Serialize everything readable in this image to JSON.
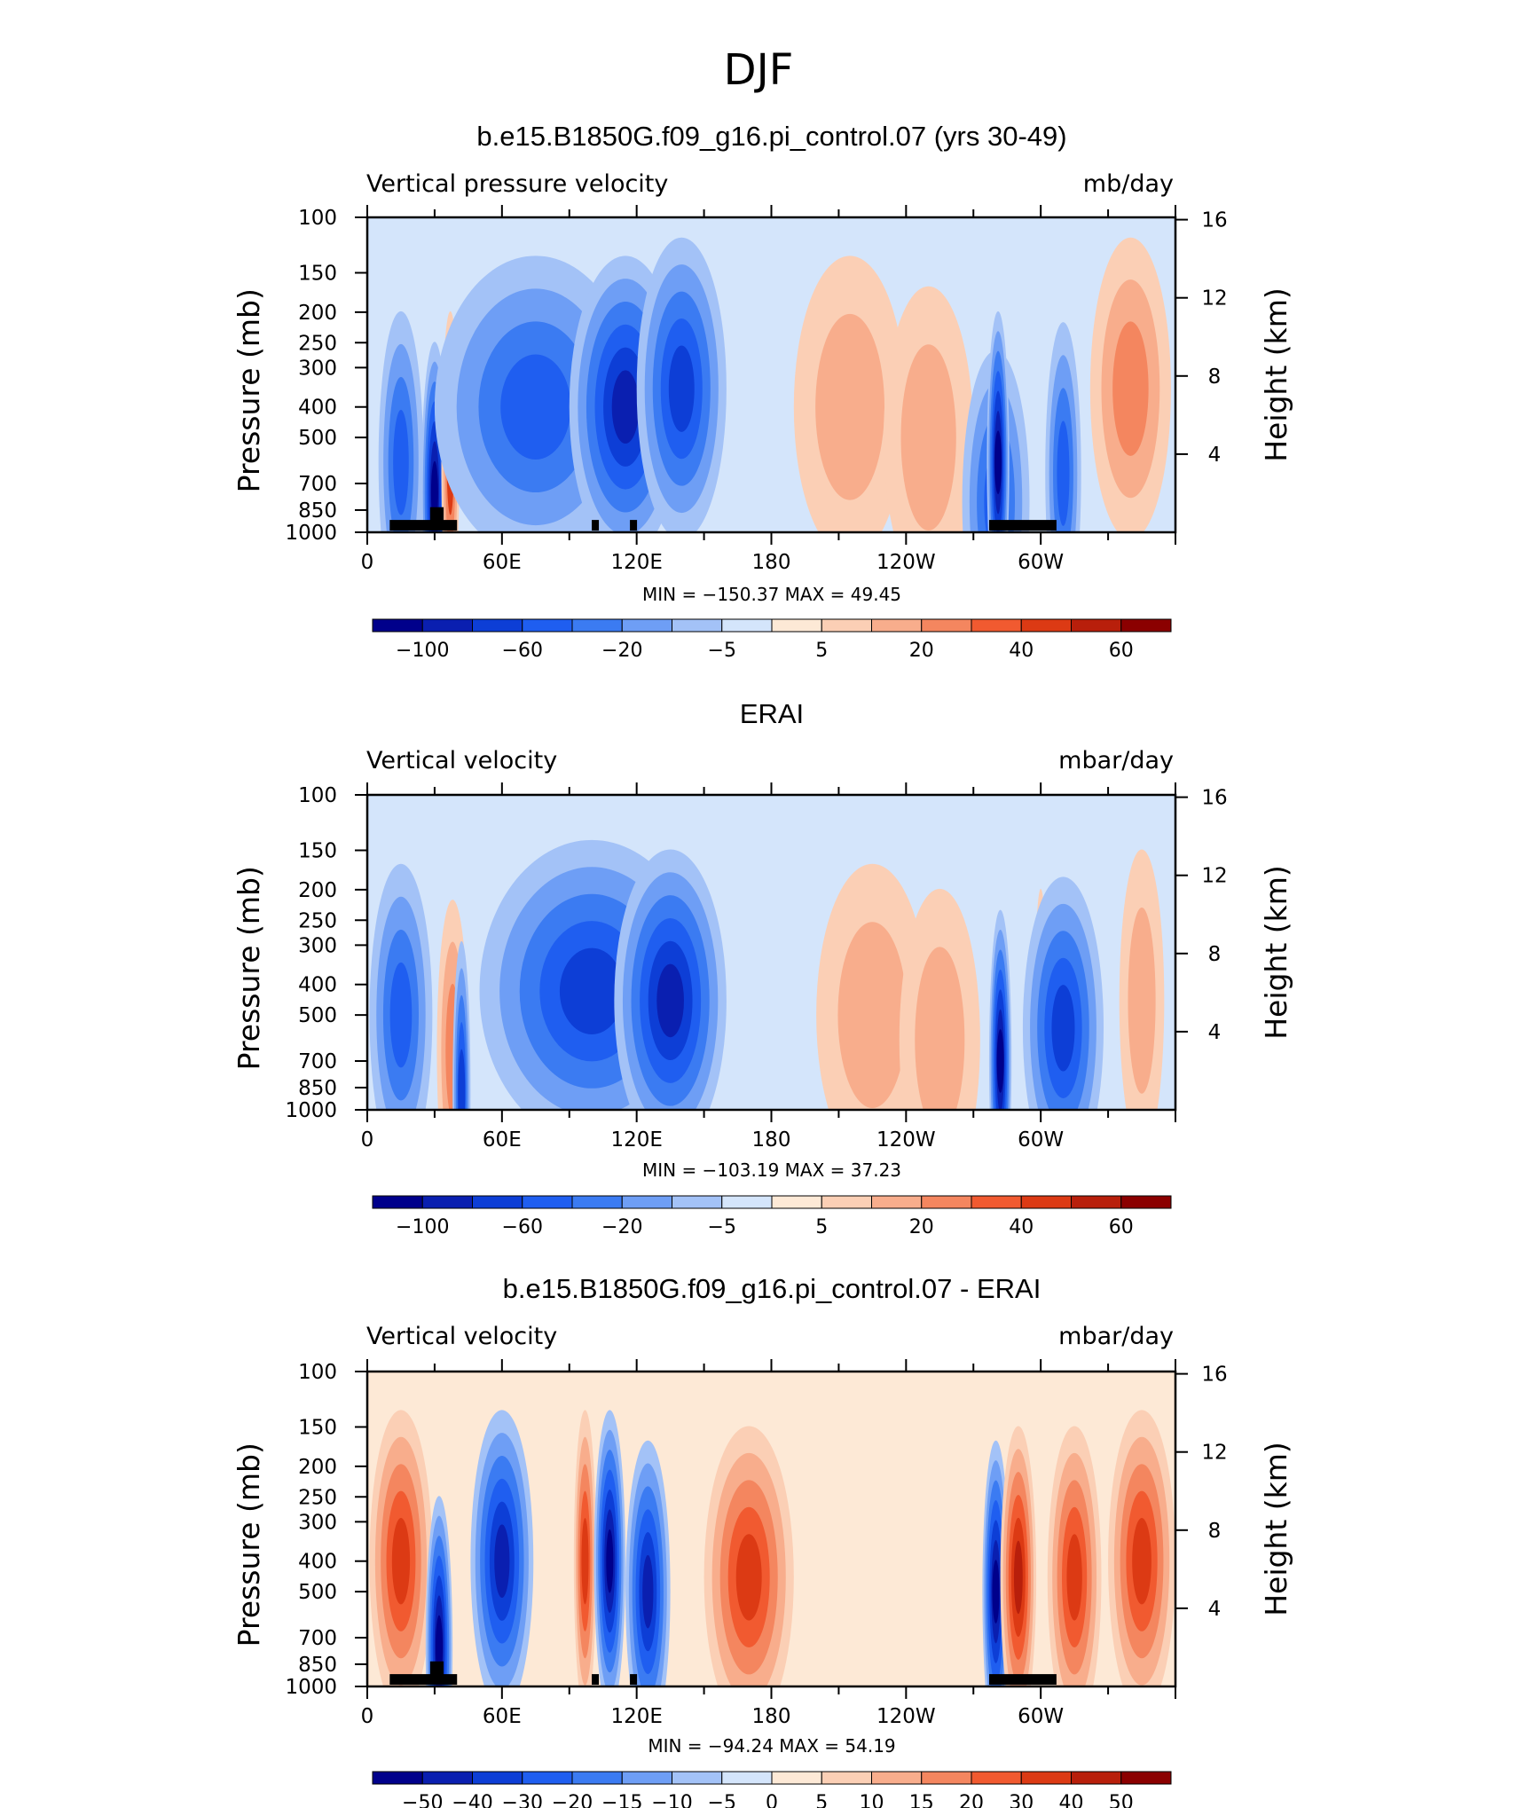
{
  "figure": {
    "title": "DJF"
  },
  "palette": {
    "negative": [
      "#00008b",
      "#0a1fb0",
      "#0d3ed6",
      "#1f5ef0",
      "#3b7bf2",
      "#6e9ef5",
      "#a3c2f7",
      "#d4e5fb"
    ],
    "positive": [
      "#fde9d6",
      "#fbcfb5",
      "#f8ad8c",
      "#f4865f",
      "#f15a30",
      "#dc3a14",
      "#b81f0b",
      "#8b0000"
    ]
  },
  "chart_data": [
    {
      "type": "heatmap",
      "title": "b.e15.B1850G.f09_g16.pi_control.07 (yrs 30-49)",
      "left_label": "Vertical pressure velocity",
      "right_label": "mb/day",
      "ylabel": "Pressure (mb)",
      "ylabel_right": "Height (km)",
      "x_ticks": [
        "0",
        "60E",
        "120E",
        "180",
        "120W",
        "60W"
      ],
      "y_ticks": [
        "100",
        "150",
        "200",
        "250",
        "300",
        "400",
        "500",
        "700",
        "850",
        "1000"
      ],
      "height_ticks": [
        "16",
        "12",
        "8",
        "4"
      ],
      "min_max": "MIN = −150.37   MAX =   49.45",
      "colorbar_labels": [
        "−100",
        "−60",
        "−20",
        "−5",
        "5",
        "20",
        "40",
        "60"
      ],
      "features": [
        {
          "lon": 15,
          "p": 600,
          "value": -45,
          "width": 10
        },
        {
          "lon": 30,
          "p": 750,
          "value": -120,
          "width": 6
        },
        {
          "lon": 37,
          "p": 600,
          "value": 40,
          "width": 4
        },
        {
          "lon": 75,
          "p": 400,
          "value": -55,
          "width": 45
        },
        {
          "lon": 115,
          "p": 400,
          "value": -95,
          "width": 25
        },
        {
          "lon": 140,
          "p": 350,
          "value": -70,
          "width": 20
        },
        {
          "lon": 215,
          "p": 400,
          "value": 15,
          "width": 25
        },
        {
          "lon": 250,
          "p": 500,
          "value": 12,
          "width": 20
        },
        {
          "lon": 280,
          "p": 800,
          "value": -40,
          "width": 15
        },
        {
          "lon": 281,
          "p": 600,
          "value": -150,
          "width": 5
        },
        {
          "lon": 310,
          "p": 650,
          "value": -55,
          "width": 8
        },
        {
          "lon": 340,
          "p": 350,
          "value": 35,
          "width": 18
        }
      ]
    },
    {
      "type": "heatmap",
      "title": "ERAI",
      "left_label": "Vertical velocity",
      "right_label": "mbar/day",
      "ylabel": "Pressure (mb)",
      "ylabel_right": "Height (km)",
      "x_ticks": [
        "0",
        "60E",
        "120E",
        "180",
        "120W",
        "60W"
      ],
      "y_ticks": [
        "100",
        "150",
        "200",
        "250",
        "300",
        "400",
        "500",
        "700",
        "850",
        "1000"
      ],
      "height_ticks": [
        "16",
        "12",
        "8",
        "4"
      ],
      "min_max": "MIN = −103.19   MAX =   37.23",
      "colorbar_labels": [
        "−100",
        "−60",
        "−20",
        "−5",
        "5",
        "20",
        "40",
        "60"
      ],
      "features": [
        {
          "lon": 15,
          "p": 500,
          "value": -45,
          "width": 14
        },
        {
          "lon": 38,
          "p": 650,
          "value": 25,
          "width": 7
        },
        {
          "lon": 42,
          "p": 880,
          "value": -60,
          "width": 4
        },
        {
          "lon": 100,
          "p": 420,
          "value": -70,
          "width": 50
        },
        {
          "lon": 135,
          "p": 450,
          "value": -80,
          "width": 25
        },
        {
          "lon": 225,
          "p": 500,
          "value": 10,
          "width": 25
        },
        {
          "lon": 255,
          "p": 600,
          "value": 18,
          "width": 18
        },
        {
          "lon": 282,
          "p": 700,
          "value": -100,
          "width": 5
        },
        {
          "lon": 300,
          "p": 600,
          "value": 35,
          "width": 3
        },
        {
          "lon": 310,
          "p": 550,
          "value": -60,
          "width": 18
        },
        {
          "lon": 345,
          "p": 450,
          "value": 10,
          "width": 10
        }
      ]
    },
    {
      "type": "heatmap",
      "title": "b.e15.B1850G.f09_g16.pi_control.07 - ERAI",
      "left_label": "Vertical velocity",
      "right_label": "mbar/day",
      "ylabel": "Pressure (mb)",
      "ylabel_right": "Height (km)",
      "x_ticks": [
        "0",
        "60E",
        "120E",
        "180",
        "120W",
        "60W"
      ],
      "y_ticks": [
        "100",
        "150",
        "200",
        "250",
        "300",
        "400",
        "500",
        "700",
        "850",
        "1000"
      ],
      "height_ticks": [
        "16",
        "12",
        "8",
        "4"
      ],
      "min_max": "MIN =  −94.24   MAX =   54.19",
      "colorbar_labels": [
        "−50",
        "−40",
        "−30",
        "−20",
        "−15",
        "−10",
        "−5",
        "0",
        "5",
        "10",
        "15",
        "20",
        "30",
        "40",
        "50"
      ],
      "features": [
        {
          "lon": 15,
          "p": 400,
          "value": 35,
          "width": 14
        },
        {
          "lon": 32,
          "p": 750,
          "value": -70,
          "width": 6
        },
        {
          "lon": 60,
          "p": 400,
          "value": -45,
          "width": 14
        },
        {
          "lon": 97,
          "p": 400,
          "value": 35,
          "width": 5
        },
        {
          "lon": 108,
          "p": 400,
          "value": -60,
          "width": 7
        },
        {
          "lon": 125,
          "p": 500,
          "value": -40,
          "width": 10
        },
        {
          "lon": 170,
          "p": 450,
          "value": 30,
          "width": 20
        },
        {
          "lon": 280,
          "p": 500,
          "value": -90,
          "width": 6
        },
        {
          "lon": 290,
          "p": 450,
          "value": 40,
          "width": 8
        },
        {
          "lon": 315,
          "p": 450,
          "value": 35,
          "width": 12
        },
        {
          "lon": 345,
          "p": 400,
          "value": 30,
          "width": 15
        }
      ]
    }
  ]
}
